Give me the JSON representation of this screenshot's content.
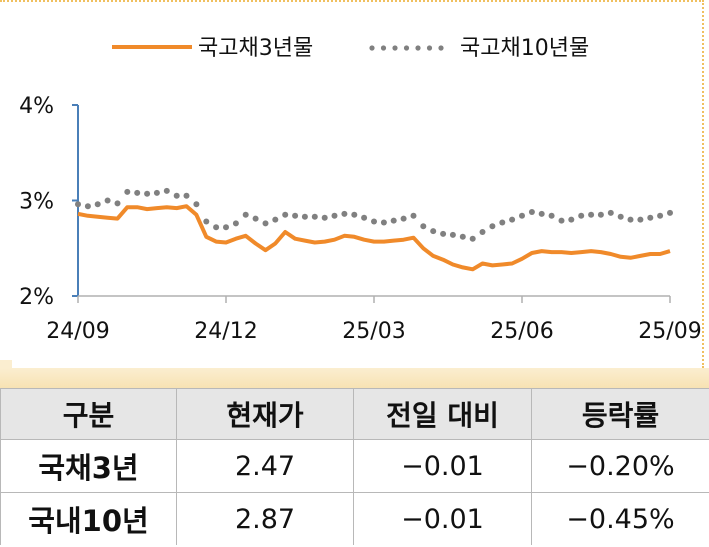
{
  "chart_data": {
    "type": "line",
    "title": "",
    "xlabel": "",
    "ylabel": "",
    "x_ticks": [
      "24/09",
      "24/12",
      "25/03",
      "25/06",
      "25/09"
    ],
    "y_ticks": [
      "2%",
      "3%",
      "4%"
    ],
    "ylim": [
      2,
      4
    ],
    "legend_position": "top-center",
    "grid": false,
    "series": [
      {
        "name": "국고채3년물",
        "color": "#f08a2a",
        "style": "solid",
        "values": [
          2.86,
          2.84,
          2.83,
          2.82,
          2.81,
          2.93,
          2.93,
          2.91,
          2.92,
          2.93,
          2.92,
          2.94,
          2.85,
          2.62,
          2.57,
          2.56,
          2.6,
          2.63,
          2.55,
          2.48,
          2.55,
          2.67,
          2.6,
          2.58,
          2.56,
          2.57,
          2.59,
          2.63,
          2.62,
          2.59,
          2.57,
          2.57,
          2.58,
          2.59,
          2.61,
          2.5,
          2.42,
          2.38,
          2.33,
          2.3,
          2.28,
          2.34,
          2.32,
          2.33,
          2.34,
          2.39,
          2.45,
          2.47,
          2.46,
          2.46,
          2.45,
          2.46,
          2.47,
          2.46,
          2.44,
          2.41,
          2.4,
          2.42,
          2.44,
          2.44,
          2.47
        ]
      },
      {
        "name": "국고채10년물",
        "color": "#808080",
        "style": "dotted",
        "values": [
          2.96,
          2.94,
          2.96,
          3.0,
          2.97,
          3.09,
          3.08,
          3.07,
          3.08,
          3.1,
          3.05,
          3.05,
          2.96,
          2.78,
          2.72,
          2.72,
          2.76,
          2.85,
          2.81,
          2.76,
          2.8,
          2.85,
          2.84,
          2.83,
          2.83,
          2.82,
          2.84,
          2.86,
          2.85,
          2.82,
          2.78,
          2.77,
          2.79,
          2.81,
          2.84,
          2.73,
          2.68,
          2.65,
          2.64,
          2.62,
          2.6,
          2.67,
          2.73,
          2.77,
          2.8,
          2.84,
          2.88,
          2.86,
          2.84,
          2.79,
          2.8,
          2.84,
          2.85,
          2.85,
          2.87,
          2.83,
          2.8,
          2.8,
          2.82,
          2.84,
          2.87
        ]
      }
    ]
  },
  "table": {
    "headers": [
      "구분",
      "현재가",
      "전일 대비",
      "등락률"
    ],
    "rows": [
      [
        "국채3년",
        "2.47",
        "−0.01",
        "−0.20%"
      ],
      [
        "국내10년",
        "2.87",
        "−0.01",
        "−0.45%"
      ]
    ]
  }
}
